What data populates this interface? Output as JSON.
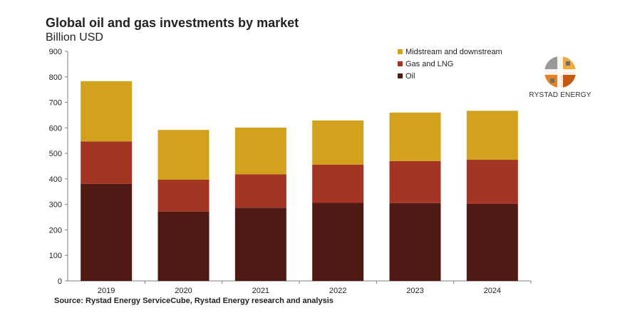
{
  "title": "Global oil and gas investments by market",
  "subtitle": "Billion USD",
  "source": "Source: Rystad Energy ServiceCube, Rystad Energy research and analysis",
  "logo": {
    "text": "RYSTAD ENERGY",
    "colors": [
      "#e8811a",
      "#f4a93c",
      "#c65a12",
      "#9a9a9a",
      "#6e6e6e"
    ]
  },
  "chart_data": {
    "type": "bar",
    "stacked": true,
    "title": "Global oil and gas investments by market",
    "ylabel": "Billion USD",
    "xlabel": "",
    "ylim": [
      0,
      900
    ],
    "yticks": [
      0,
      100,
      200,
      300,
      400,
      500,
      600,
      700,
      800,
      900
    ],
    "categories": [
      "2019",
      "2020",
      "2021",
      "2022",
      "2023",
      "2024"
    ],
    "series": [
      {
        "name": "Oil",
        "color": "#4e1a13",
        "values": [
          381,
          272,
          287,
          306,
          305,
          302
        ]
      },
      {
        "name": "Gas and LNG",
        "color": "#a43424",
        "values": [
          166,
          125,
          131,
          150,
          165,
          173
        ]
      },
      {
        "name": "Midstream and downstream",
        "color": "#d2a21d",
        "values": [
          236,
          195,
          183,
          173,
          190,
          192
        ]
      }
    ],
    "legend": {
      "placement": "top-right",
      "order": [
        "Midstream and downstream",
        "Gas and LNG",
        "Oil"
      ]
    },
    "grid": false
  }
}
